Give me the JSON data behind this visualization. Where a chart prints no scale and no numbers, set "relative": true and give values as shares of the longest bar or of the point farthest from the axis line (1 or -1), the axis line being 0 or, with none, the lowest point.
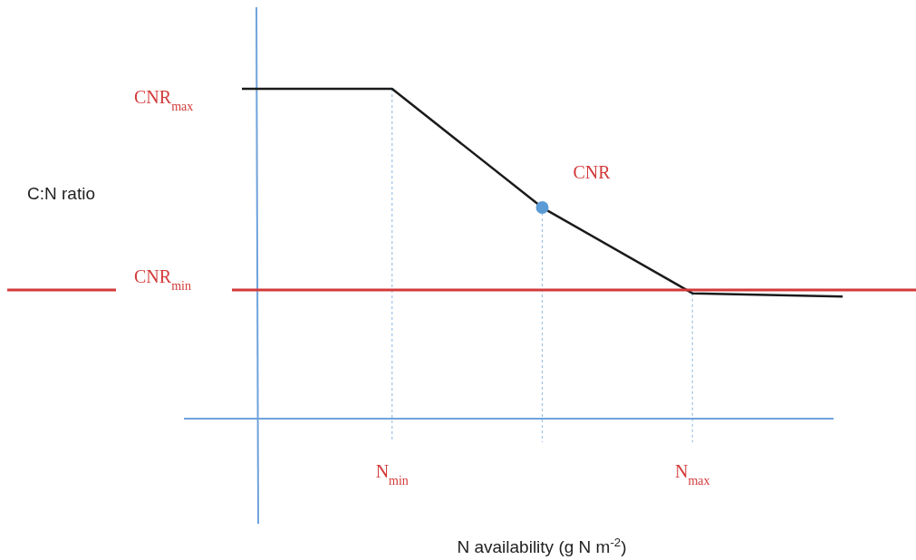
{
  "chart_data": {
    "type": "line",
    "relative": true,
    "xlabel": "N availability (g N m$^{-2}$)",
    "categories": [
      null,
      "N$_{min}$",
      null,
      "N$_{max}$",
      null
    ],
    "series": [
      {
        "color": "#1a1a1a",
        "values": [
          1,
          1,
          0.64,
          0.38,
          0.37
        ]
      },
      {
        "type": "scatter",
        "color": "#5b9bd5",
        "values": [
          null,
          null,
          0.64,
          null,
          null
        ]
      }
    ],
    "ref_lines": [
      {
        "axis": "y",
        "value": 0.39,
        "label": "CNR$_{min}$",
        "color": "#d33a3a"
      }
    ],
    "annotations": [
      "C:N ratio",
      "CNR$_{max}$",
      "CNR"
    ],
    "line_style": "solid"
  }
}
